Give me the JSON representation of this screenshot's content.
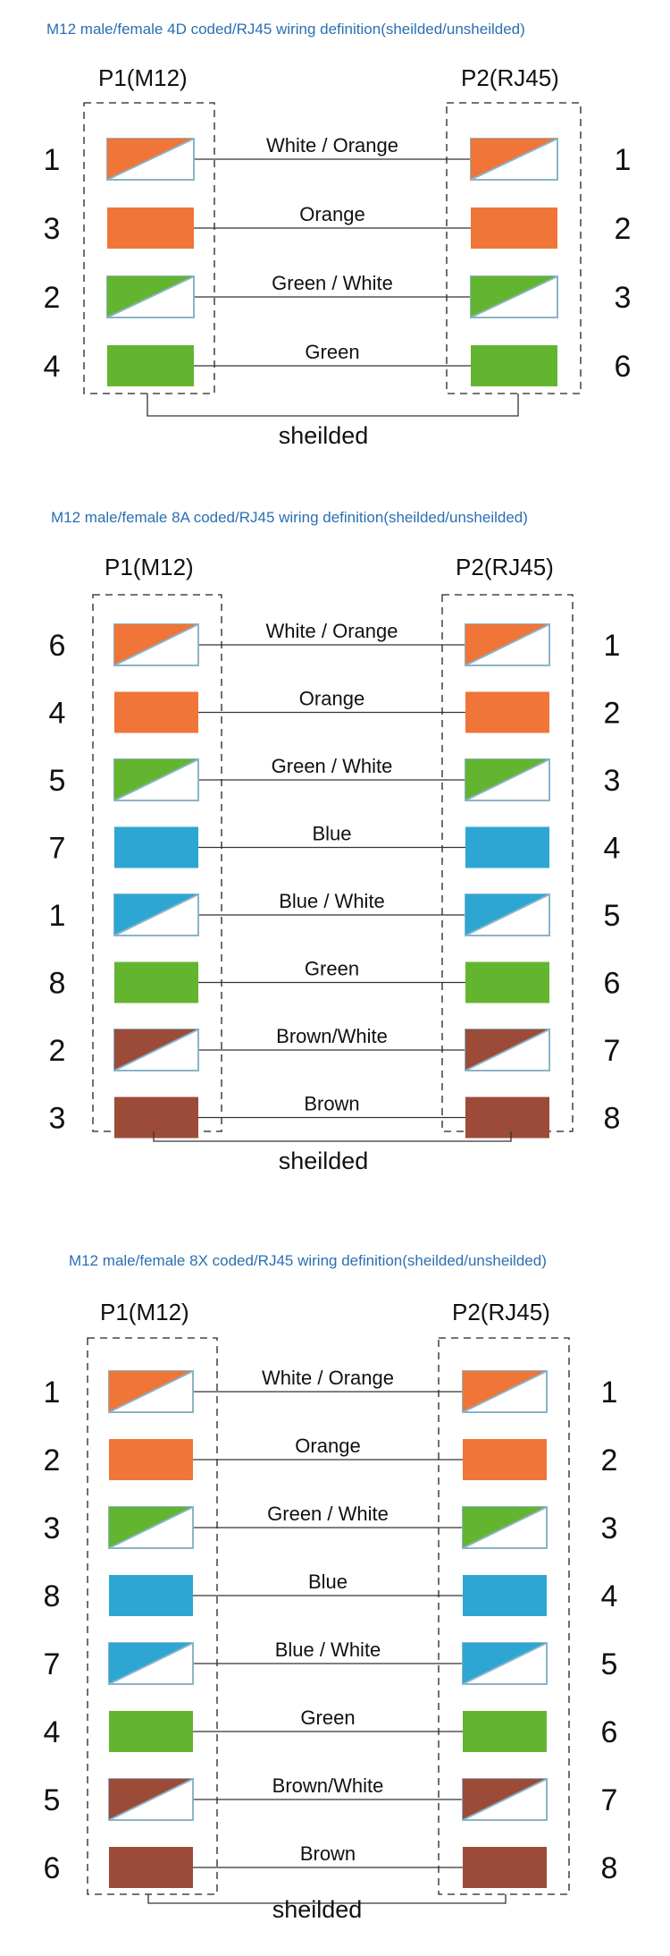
{
  "colors": {
    "orange": "#f07538",
    "green": "#63b530",
    "blue": "#2ea6d3",
    "brown": "#9c4b38",
    "title": "#2a6fb3",
    "stripe_border": "#8ab4c8"
  },
  "diagrams": [
    {
      "title": "M12 male/female 4D coded/RJ45 wiring definition(sheilded/unsheilded)",
      "left_header": "P1(M12)",
      "right_header": "P2(RJ45)",
      "shield_label": "sheilded",
      "wires": [
        {
          "left_pin": "1",
          "right_pin": "1",
          "label": "White / Orange",
          "color": "orange",
          "striped": true
        },
        {
          "left_pin": "3",
          "right_pin": "2",
          "label": "Orange",
          "color": "orange",
          "striped": false
        },
        {
          "left_pin": "2",
          "right_pin": "3",
          "label": "Green / White",
          "color": "green",
          "striped": true
        },
        {
          "left_pin": "4",
          "right_pin": "6",
          "label": "Green",
          "color": "green",
          "striped": false
        }
      ]
    },
    {
      "title": "M12 male/female 8A coded/RJ45 wiring definition(sheilded/unsheilded)",
      "left_header": "P1(M12)",
      "right_header": "P2(RJ45)",
      "shield_label": "sheilded",
      "wires": [
        {
          "left_pin": "6",
          "right_pin": "1",
          "label": "White / Orange",
          "color": "orange",
          "striped": true
        },
        {
          "left_pin": "4",
          "right_pin": "2",
          "label": "Orange",
          "color": "orange",
          "striped": false
        },
        {
          "left_pin": "5",
          "right_pin": "3",
          "label": "Green / White",
          "color": "green",
          "striped": true
        },
        {
          "left_pin": "7",
          "right_pin": "4",
          "label": "Blue",
          "color": "blue",
          "striped": false
        },
        {
          "left_pin": "1",
          "right_pin": "5",
          "label": "Blue / White",
          "color": "blue",
          "striped": true
        },
        {
          "left_pin": "8",
          "right_pin": "6",
          "label": "Green",
          "color": "green",
          "striped": false
        },
        {
          "left_pin": "2",
          "right_pin": "7",
          "label": "Brown/White",
          "color": "brown",
          "striped": true
        },
        {
          "left_pin": "3",
          "right_pin": "8",
          "label": "Brown",
          "color": "brown",
          "striped": false
        }
      ]
    },
    {
      "title": "M12 male/female 8X coded/RJ45 wiring definition(sheilded/unsheilded)",
      "left_header": "P1(M12)",
      "right_header": "P2(RJ45)",
      "shield_label": "sheilded",
      "wires": [
        {
          "left_pin": "1",
          "right_pin": "1",
          "label": "White / Orange",
          "color": "orange",
          "striped": true
        },
        {
          "left_pin": "2",
          "right_pin": "2",
          "label": "Orange",
          "color": "orange",
          "striped": false
        },
        {
          "left_pin": "3",
          "right_pin": "3",
          "label": "Green / White",
          "color": "green",
          "striped": true
        },
        {
          "left_pin": "8",
          "right_pin": "4",
          "label": "Blue",
          "color": "blue",
          "striped": false
        },
        {
          "left_pin": "7",
          "right_pin": "5",
          "label": "Blue / White",
          "color": "blue",
          "striped": true
        },
        {
          "left_pin": "4",
          "right_pin": "6",
          "label": "Green",
          "color": "green",
          "striped": false
        },
        {
          "left_pin": "5",
          "right_pin": "7",
          "label": "Brown/White",
          "color": "brown",
          "striped": true
        },
        {
          "left_pin": "6",
          "right_pin": "8",
          "label": "Brown",
          "color": "brown",
          "striped": false
        }
      ]
    }
  ]
}
